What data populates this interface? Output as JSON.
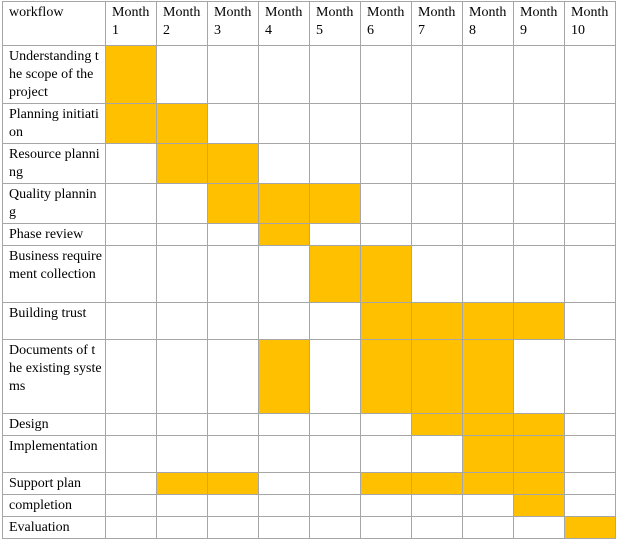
{
  "table": {
    "header": [
      "workflow",
      "Month 1",
      "Month 2",
      "Month 3",
      "Month 4",
      "Month 5",
      "Month 6",
      "Month 7",
      "Month 8",
      "Month 9",
      "Month 10"
    ],
    "fill_color": "#ffc000",
    "rows": [
      {
        "task": "Understanding the scope of the project",
        "months": [
          1
        ]
      },
      {
        "task": "Planning initiation",
        "months": [
          1,
          2
        ]
      },
      {
        "task": "Resource planning",
        "months": [
          2,
          3
        ]
      },
      {
        "task": "Quality planning",
        "months": [
          3,
          4,
          5
        ]
      },
      {
        "task": "Phase review",
        "months": [
          4
        ]
      },
      {
        "task": "Business requirement collection",
        "months": [
          5,
          6
        ]
      },
      {
        "task": "Building trust",
        "months": [
          6,
          7,
          8,
          9
        ]
      },
      {
        "task": "Documents of the existing systems",
        "months": [
          4,
          6,
          7,
          8
        ]
      },
      {
        "task": "Design",
        "months": [
          7,
          8,
          9
        ]
      },
      {
        "task": "Implementation",
        "months": [
          8,
          9
        ]
      },
      {
        "task": "Support plan",
        "months": [
          2,
          3,
          6,
          7,
          8,
          9
        ]
      },
      {
        "task": "completion",
        "months": [
          9
        ]
      },
      {
        "task": "Evaluation",
        "months": [
          10
        ]
      }
    ]
  }
}
